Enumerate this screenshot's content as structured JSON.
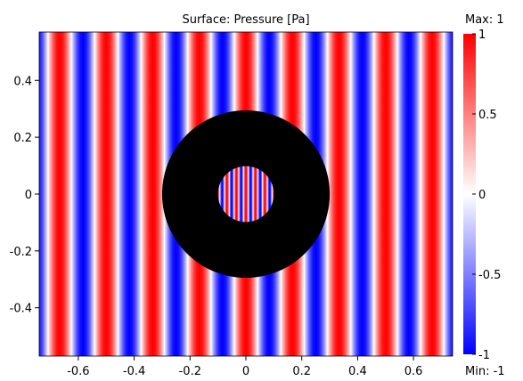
{
  "chart_data": {
    "type": "heatmap",
    "title": "Surface: Pressure [Pa]",
    "xlabel": "",
    "ylabel": "",
    "xlim": [
      -0.74,
      0.74
    ],
    "ylim": [
      -0.57,
      0.57
    ],
    "x_ticks": [
      -0.6,
      -0.4,
      -0.2,
      0,
      0.2,
      0.4,
      0.6
    ],
    "x_tick_labels": [
      "-0.6",
      "-0.4",
      "-0.2",
      "0",
      "0.2",
      "0.4",
      "0.6"
    ],
    "y_ticks": [
      0.4,
      0.2,
      0,
      -0.2,
      -0.4
    ],
    "y_tick_labels": [
      "0.4",
      "0.2",
      "0",
      "-0.2",
      "-0.4"
    ],
    "field": "cos(2*pi*x/wavelength) (plane wave pattern, vertical stripes)",
    "wavelength": 0.1667,
    "obstacle": {
      "shape": "annulus",
      "center": [
        0,
        0
      ],
      "outer_radius": 0.3,
      "inner_radius": 0.1,
      "color": "#000000",
      "inner_wavelength": 0.034
    },
    "colorbar": {
      "max_label": "Max: 1",
      "min_label": "Min: -1",
      "ticks": [
        1,
        0.5,
        0,
        -0.5,
        -1
      ],
      "tick_labels": [
        "1",
        "0.5",
        "0",
        "-0.5",
        "-1"
      ],
      "colormap": [
        "#0000ff",
        "#ffffff",
        "#ff0000"
      ]
    }
  }
}
